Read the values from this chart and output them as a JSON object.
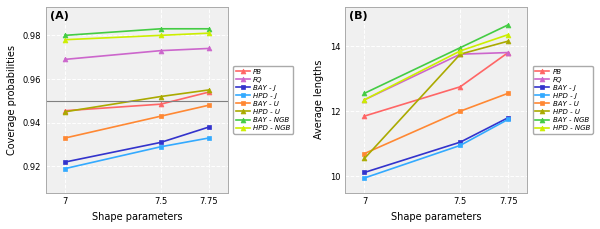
{
  "x": [
    7,
    7.5,
    7.75
  ],
  "panel_A": {
    "title": "(A)",
    "ylabel": "Coverage probabilities",
    "xlabel": "Shape parameters",
    "hline": 0.95,
    "ylim": [
      0.908,
      0.993
    ],
    "yticks": [
      0.92,
      0.94,
      0.96,
      0.98
    ],
    "series": {
      "PB": {
        "values": [
          0.9455,
          0.9485,
          0.954
        ],
        "color": "#ff6666",
        "marker": "^"
      },
      "FQ": {
        "values": [
          0.969,
          0.973,
          0.974
        ],
        "color": "#cc66cc",
        "marker": "^"
      },
      "BAY-J": {
        "values": [
          0.922,
          0.931,
          0.938
        ],
        "color": "#3333cc",
        "marker": "s"
      },
      "HPD-J": {
        "values": [
          0.919,
          0.929,
          0.933
        ],
        "color": "#33aaff",
        "marker": "s"
      },
      "BAY-U": {
        "values": [
          0.933,
          0.943,
          0.948
        ],
        "color": "#ff8833",
        "marker": "s"
      },
      "HPD-U": {
        "values": [
          0.945,
          0.952,
          0.955
        ],
        "color": "#aaaa00",
        "marker": "^"
      },
      "BAY-NGB": {
        "values": [
          0.98,
          0.983,
          0.983
        ],
        "color": "#44cc44",
        "marker": "^"
      },
      "HPD-NGB": {
        "values": [
          0.978,
          0.98,
          0.981
        ],
        "color": "#ccee00",
        "marker": "^"
      }
    }
  },
  "panel_B": {
    "title": "(B)",
    "ylabel": "Average lengths",
    "xlabel": "Shape parameters",
    "ylim": [
      9.5,
      15.2
    ],
    "yticks": [
      10,
      12,
      14
    ],
    "series": {
      "PB": {
        "values": [
          11.85,
          12.75,
          13.8
        ],
        "color": "#ff6666",
        "marker": "^"
      },
      "FQ": {
        "values": [
          12.35,
          13.75,
          13.8
        ],
        "color": "#cc66cc",
        "marker": "^"
      },
      "BAY-J": {
        "values": [
          10.12,
          11.05,
          11.8
        ],
        "color": "#3333cc",
        "marker": "s"
      },
      "HPD-J": {
        "values": [
          9.95,
          10.95,
          11.75
        ],
        "color": "#33aaff",
        "marker": "s"
      },
      "BAY-U": {
        "values": [
          10.7,
          12.0,
          12.55
        ],
        "color": "#ff8833",
        "marker": "s"
      },
      "HPD-U": {
        "values": [
          10.55,
          13.75,
          14.15
        ],
        "color": "#aaaa00",
        "marker": "^"
      },
      "BAY-NGB": {
        "values": [
          12.55,
          13.95,
          14.65
        ],
        "color": "#44cc44",
        "marker": "^"
      },
      "HPD-NGB": {
        "values": [
          12.35,
          13.85,
          14.35
        ],
        "color": "#ccee00",
        "marker": "^"
      }
    }
  },
  "legend_labels": [
    "PB",
    "FQ",
    "BAY - J",
    "HPD - J",
    "BAY - U",
    "HPD - U",
    "BAY - NGB",
    "HPD - NGB"
  ],
  "legend_keys": [
    "PB",
    "FQ",
    "BAY-J",
    "HPD-J",
    "BAY-U",
    "HPD-U",
    "BAY-NGB",
    "HPD-NGB"
  ]
}
